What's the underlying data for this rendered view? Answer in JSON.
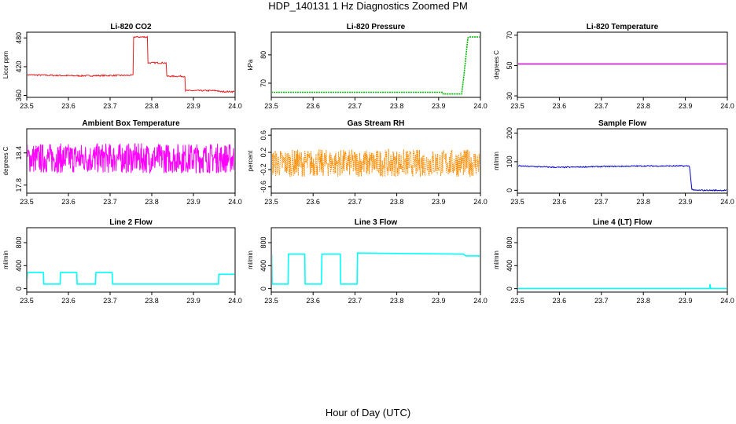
{
  "title": "HDP_140131  1 Hz Diagnostics Zoomed PM",
  "xlabel": "Hour of Day (UTC)",
  "chart_data": [
    {
      "type": "line",
      "title": "Li-820 CO2",
      "ylabel": "Licor ppm",
      "xlim": [
        23.5,
        24.0
      ],
      "ylim": [
        356,
        492
      ],
      "xticks": [
        "23.5",
        "23.6",
        "23.7",
        "23.8",
        "23.9",
        "24.0"
      ],
      "yticks": [
        360,
        420,
        480
      ],
      "color": "#e41a1c",
      "series": [
        {
          "name": "CO2",
          "noise": 1.5,
          "x": [
            23.5,
            23.62,
            23.755,
            23.756,
            23.79,
            23.791,
            23.835,
            23.836,
            23.88,
            23.881,
            23.96,
            23.961,
            24.0
          ],
          "y": [
            403,
            401,
            402,
            482,
            482,
            428,
            428,
            400,
            400,
            370,
            370,
            368,
            368
          ]
        }
      ]
    },
    {
      "type": "line",
      "title": "Li-820 Pressure",
      "ylabel": "kPa",
      "xlim": [
        23.5,
        24.0
      ],
      "ylim": [
        65,
        88
      ],
      "xticks": [
        "23.5",
        "23.6",
        "23.7",
        "23.8",
        "23.9",
        "24.0"
      ],
      "yticks": [
        70,
        80
      ],
      "color": "#00bb00",
      "series": [
        {
          "name": "Pressure",
          "noise": 0,
          "x": [
            23.5,
            23.91,
            23.911,
            23.955,
            23.96,
            23.97,
            23.975,
            24.0
          ],
          "y": [
            66.8,
            66.8,
            66.2,
            66.2,
            72,
            86,
            86.3,
            86.3
          ]
        }
      ]
    },
    {
      "type": "line",
      "title": "Li-820 Temperature",
      "ylabel": "degrees C",
      "xlim": [
        23.5,
        24.0
      ],
      "ylim": [
        29,
        72
      ],
      "xticks": [
        "23.5",
        "23.6",
        "23.7",
        "23.8",
        "23.9",
        "24.0"
      ],
      "yticks": [
        30,
        50,
        70
      ],
      "color": "#cc00cc",
      "series": [
        {
          "name": "Temperature",
          "noise": 0,
          "x": [
            23.5,
            24.0
          ],
          "y": [
            51,
            51
          ]
        }
      ]
    },
    {
      "type": "line",
      "title": "Ambient Box Temperature",
      "ylabel": "degrees C",
      "xlim": [
        23.5,
        24.0
      ],
      "ylim": [
        17.65,
        18.85
      ],
      "xticks": [
        "23.5",
        "23.6",
        "23.7",
        "23.8",
        "23.9",
        "24.0"
      ],
      "yticks": [
        17.8,
        18.4
      ],
      "color": "#ff00ff",
      "series": [
        {
          "name": "BoxTemp",
          "noise": 0.28,
          "x": [
            23.5,
            24.0
          ],
          "y": [
            18.3,
            18.3
          ]
        }
      ]
    },
    {
      "type": "line",
      "title": "Gas Stream RH",
      "ylabel": "percent",
      "xlim": [
        23.5,
        24.0
      ],
      "ylim": [
        -0.75,
        0.75
      ],
      "xticks": [
        "23.5",
        "23.6",
        "23.7",
        "23.8",
        "23.9",
        "24.0"
      ],
      "yticks": [
        -0.6,
        -0.2,
        0.2,
        0.6
      ],
      "color": "#ff8c00",
      "series": [
        {
          "name": "RH",
          "noise": 0.32,
          "x": [
            23.5,
            24.0
          ],
          "y": [
            -0.05,
            -0.05
          ]
        }
      ]
    },
    {
      "type": "line",
      "title": "Sample Flow",
      "ylabel": "ml/min",
      "xlim": [
        23.5,
        24.0
      ],
      "ylim": [
        -10,
        215
      ],
      "xticks": [
        "23.5",
        "23.6",
        "23.7",
        "23.8",
        "23.9",
        "24.0"
      ],
      "yticks": [
        0,
        100,
        200
      ],
      "color": "#0000cc",
      "series": [
        {
          "name": "SampleFlow",
          "noise": 2,
          "x": [
            23.5,
            23.6,
            23.7,
            23.8,
            23.91,
            23.915,
            23.92,
            24.0
          ],
          "y": [
            85,
            80,
            83,
            85,
            85,
            5,
            0,
            0
          ]
        }
      ]
    },
    {
      "type": "line",
      "title": "Line 2 Flow",
      "ylabel": "ml/min",
      "xlim": [
        23.5,
        24.0
      ],
      "ylim": [
        -60,
        1060
      ],
      "xticks": [
        "23.5",
        "23.6",
        "23.7",
        "23.8",
        "23.9",
        "24.0"
      ],
      "yticks": [
        0,
        400,
        800
      ],
      "color": "#00ffff",
      "series": [
        {
          "name": "Line2",
          "noise": 0,
          "x": [
            23.5,
            23.502,
            23.54,
            23.541,
            23.58,
            23.581,
            23.62,
            23.621,
            23.665,
            23.666,
            23.705,
            23.706,
            23.96,
            23.961,
            24.0
          ],
          "y": [
            120,
            280,
            280,
            80,
            80,
            280,
            280,
            80,
            80,
            280,
            280,
            80,
            80,
            250,
            250
          ]
        }
      ]
    },
    {
      "type": "line",
      "title": "Line 3 Flow",
      "ylabel": "ml/min",
      "xlim": [
        23.5,
        24.0
      ],
      "ylim": [
        -60,
        1060
      ],
      "xticks": [
        "23.5",
        "23.6",
        "23.7",
        "23.8",
        "23.9",
        "24.0"
      ],
      "yticks": [
        0,
        400,
        800
      ],
      "color": "#00ffff",
      "series": [
        {
          "name": "Line3",
          "noise": 0,
          "x": [
            23.5,
            23.501,
            23.502,
            23.54,
            23.541,
            23.58,
            23.581,
            23.62,
            23.621,
            23.665,
            23.666,
            23.705,
            23.706,
            23.96,
            23.965,
            24.0
          ],
          "y": [
            80,
            600,
            80,
            80,
            600,
            600,
            80,
            80,
            600,
            600,
            80,
            80,
            620,
            600,
            570,
            570
          ]
        }
      ]
    },
    {
      "type": "line",
      "title": "Line 4 (LT) Flow",
      "ylabel": "ml/min",
      "xlim": [
        23.5,
        24.0
      ],
      "ylim": [
        -60,
        1060
      ],
      "xticks": [
        "23.5",
        "23.6",
        "23.7",
        "23.8",
        "23.9",
        "24.0"
      ],
      "yticks": [
        0,
        400,
        800
      ],
      "color": "#00ffff",
      "series": [
        {
          "name": "Line4",
          "noise": 0,
          "x": [
            23.5,
            23.958,
            23.959,
            23.96,
            23.961,
            24.0
          ],
          "y": [
            0,
            0,
            80,
            0,
            0,
            0
          ]
        }
      ]
    }
  ]
}
